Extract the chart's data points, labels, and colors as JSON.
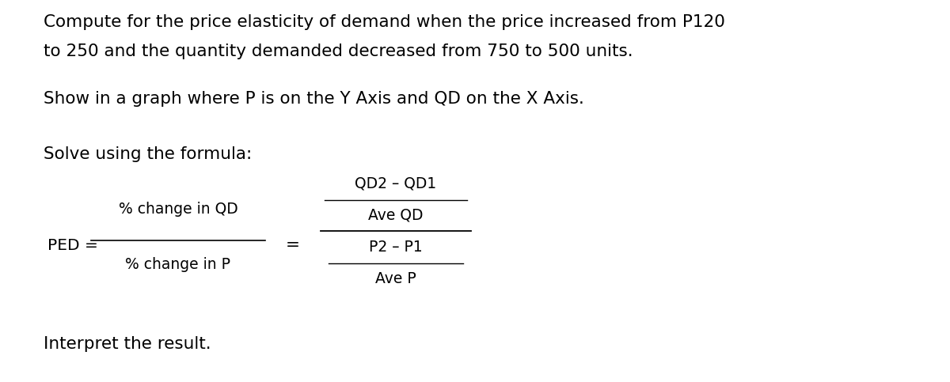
{
  "background_color": "#ffffff",
  "fig_width": 12.0,
  "fig_height": 4.83,
  "dpi": 100,
  "line1": "Compute for the price elasticity of demand when the price increased from P120",
  "line2": "to 250 and the quantity demanded decreased from 750 to 500 units.",
  "line3": "Show in a graph where P is on the Y Axis and QD on the X Axis.",
  "line4": "Solve using the formula:",
  "ped_label": "PED =",
  "fraction1_num": "% change in QD",
  "fraction1_den": "% change in P",
  "equals": "=",
  "frac2_num_top": "QD2 – QD1",
  "frac2_num_bot": "Ave QD",
  "frac2_den_top": "P2 – P1",
  "frac2_den_bot": "Ave P",
  "interpret": "Interpret the result.",
  "text_color": "#000000",
  "font_size_main": 15.5,
  "font_size_formula": 13.5,
  "font_family": "DejaVu Sans"
}
